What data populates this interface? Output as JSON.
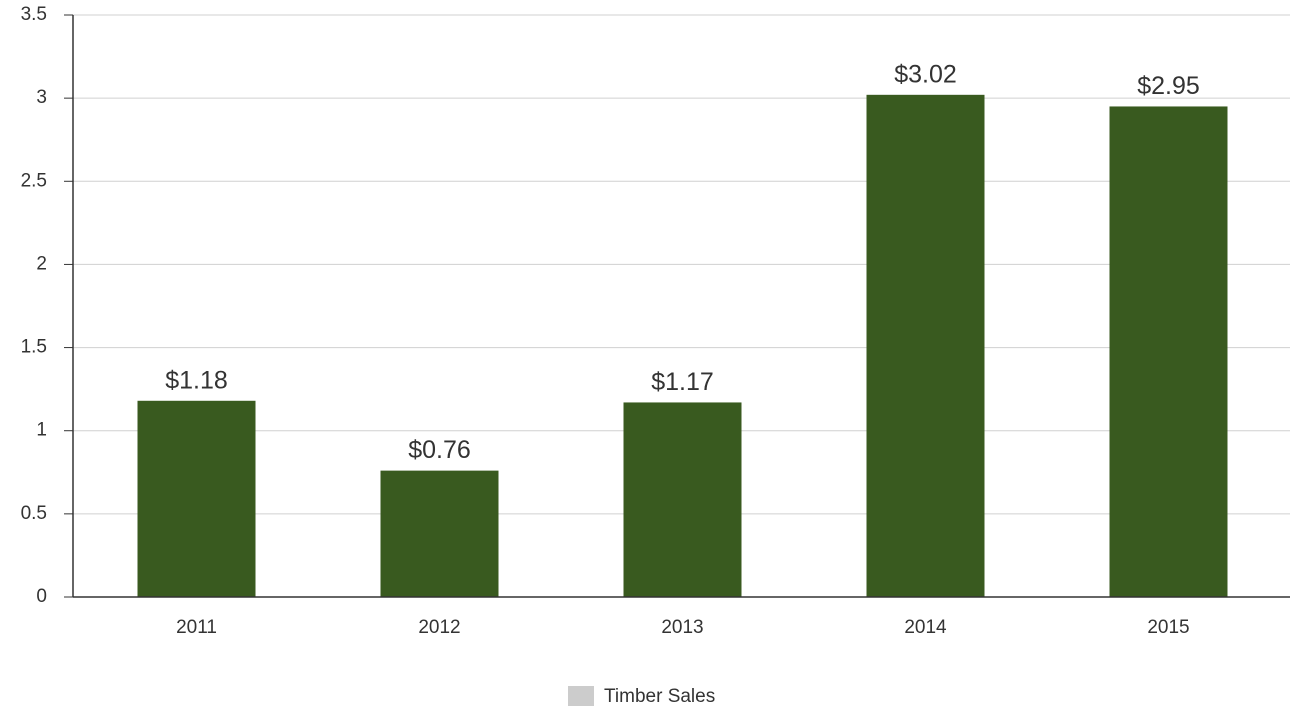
{
  "chart_data": {
    "type": "bar",
    "categories": [
      "2011",
      "2012",
      "2013",
      "2014",
      "2015"
    ],
    "series": [
      {
        "name": "Timber Sales",
        "color": "#395a1f",
        "values": [
          1.18,
          0.76,
          1.17,
          3.02,
          2.95
        ],
        "value_labels": [
          "$1.18",
          "$0.76",
          "$1.17",
          "$3.02",
          "$2.95"
        ]
      }
    ],
    "legend_swatch_color": "#cccccc",
    "ylim": [
      0,
      3.5
    ],
    "yticks": [
      0,
      0.5,
      1,
      1.5,
      2,
      2.5,
      3,
      3.5
    ],
    "grid": true,
    "legend": "bottom"
  }
}
